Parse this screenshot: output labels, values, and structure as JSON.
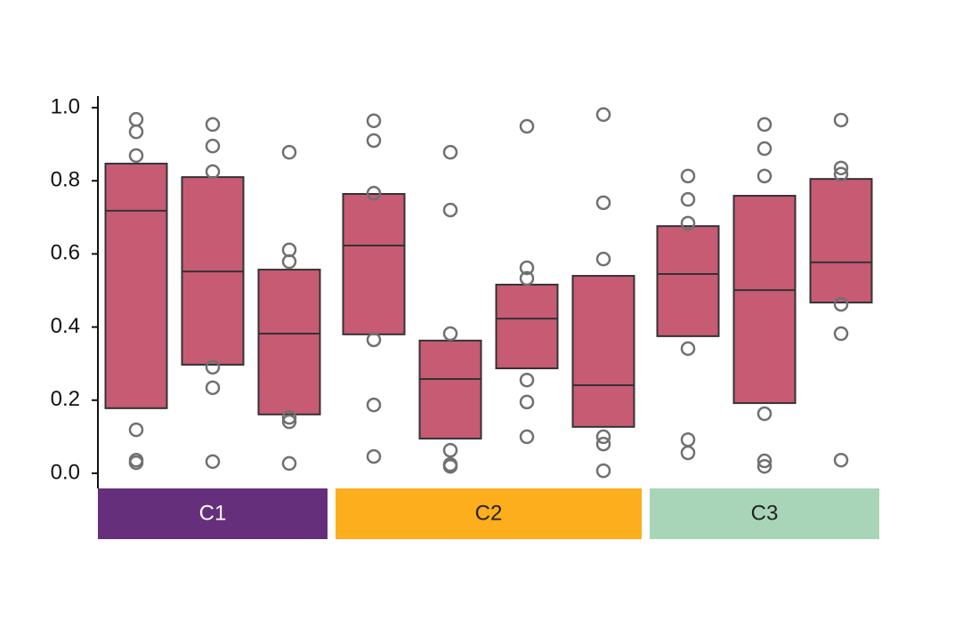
{
  "chart_data": {
    "type": "box",
    "ylim": [
      0,
      1.0
    ],
    "yticks": [
      {
        "value": 0,
        "label": "0.0"
      },
      0.2,
      0.4,
      0.6,
      0.8,
      {
        "value": 1.0,
        "label": "1.0"
      }
    ],
    "box_color": "#c75b73",
    "point_color": "#707070",
    "groups": [
      {
        "name": "C1",
        "color": "#652f7b",
        "label_color": "#ffffff",
        "boxes": [
          {
            "q1": 0.178,
            "median": 0.718,
            "q3": 0.847,
            "points": [
              0.968,
              0.934,
              0.869,
              0.119,
              0.036,
              0.029
            ]
          },
          {
            "q1": 0.297,
            "median": 0.552,
            "q3": 0.81,
            "points": [
              0.954,
              0.895,
              0.825,
              0.29,
              0.234,
              0.032
            ]
          },
          {
            "q1": 0.161,
            "median": 0.382,
            "q3": 0.557,
            "points": [
              0.878,
              0.611,
              0.579,
              0.153,
              0.141,
              0.027
            ]
          }
        ]
      },
      {
        "name": "C2",
        "color": "#fcae1c",
        "label_color": "#222222",
        "boxes": [
          {
            "q1": 0.38,
            "median": 0.623,
            "q3": 0.764,
            "points": [
              0.964,
              0.91,
              0.766,
              0.365,
              0.187,
              0.046
            ]
          },
          {
            "q1": 0.095,
            "median": 0.258,
            "q3": 0.363,
            "points": [
              0.878,
              0.72,
              0.382,
              0.063,
              0.024,
              0.019
            ]
          },
          {
            "q1": 0.287,
            "median": 0.423,
            "q3": 0.516,
            "points": [
              0.949,
              0.562,
              0.533,
              0.255,
              0.195,
              0.1
            ]
          },
          {
            "q1": 0.127,
            "median": 0.241,
            "q3": 0.54,
            "points": [
              0.981,
              0.74,
              0.586,
              0.1,
              0.08,
              0.007
            ]
          }
        ]
      },
      {
        "name": "C3",
        "color": "#a8d5b8",
        "label_color": "#222222",
        "boxes": [
          {
            "q1": 0.375,
            "median": 0.545,
            "q3": 0.676,
            "points": [
              0.813,
              0.749,
              0.684,
              0.341,
              0.092,
              0.056
            ]
          },
          {
            "q1": 0.192,
            "median": 0.501,
            "q3": 0.759,
            "points": [
              0.954,
              0.888,
              0.813,
              0.163,
              0.034,
              0.019
            ]
          },
          {
            "q1": 0.467,
            "median": 0.577,
            "q3": 0.805,
            "points": [
              0.966,
              0.835,
              0.818,
              0.462,
              0.382,
              0.036
            ]
          }
        ]
      }
    ]
  }
}
